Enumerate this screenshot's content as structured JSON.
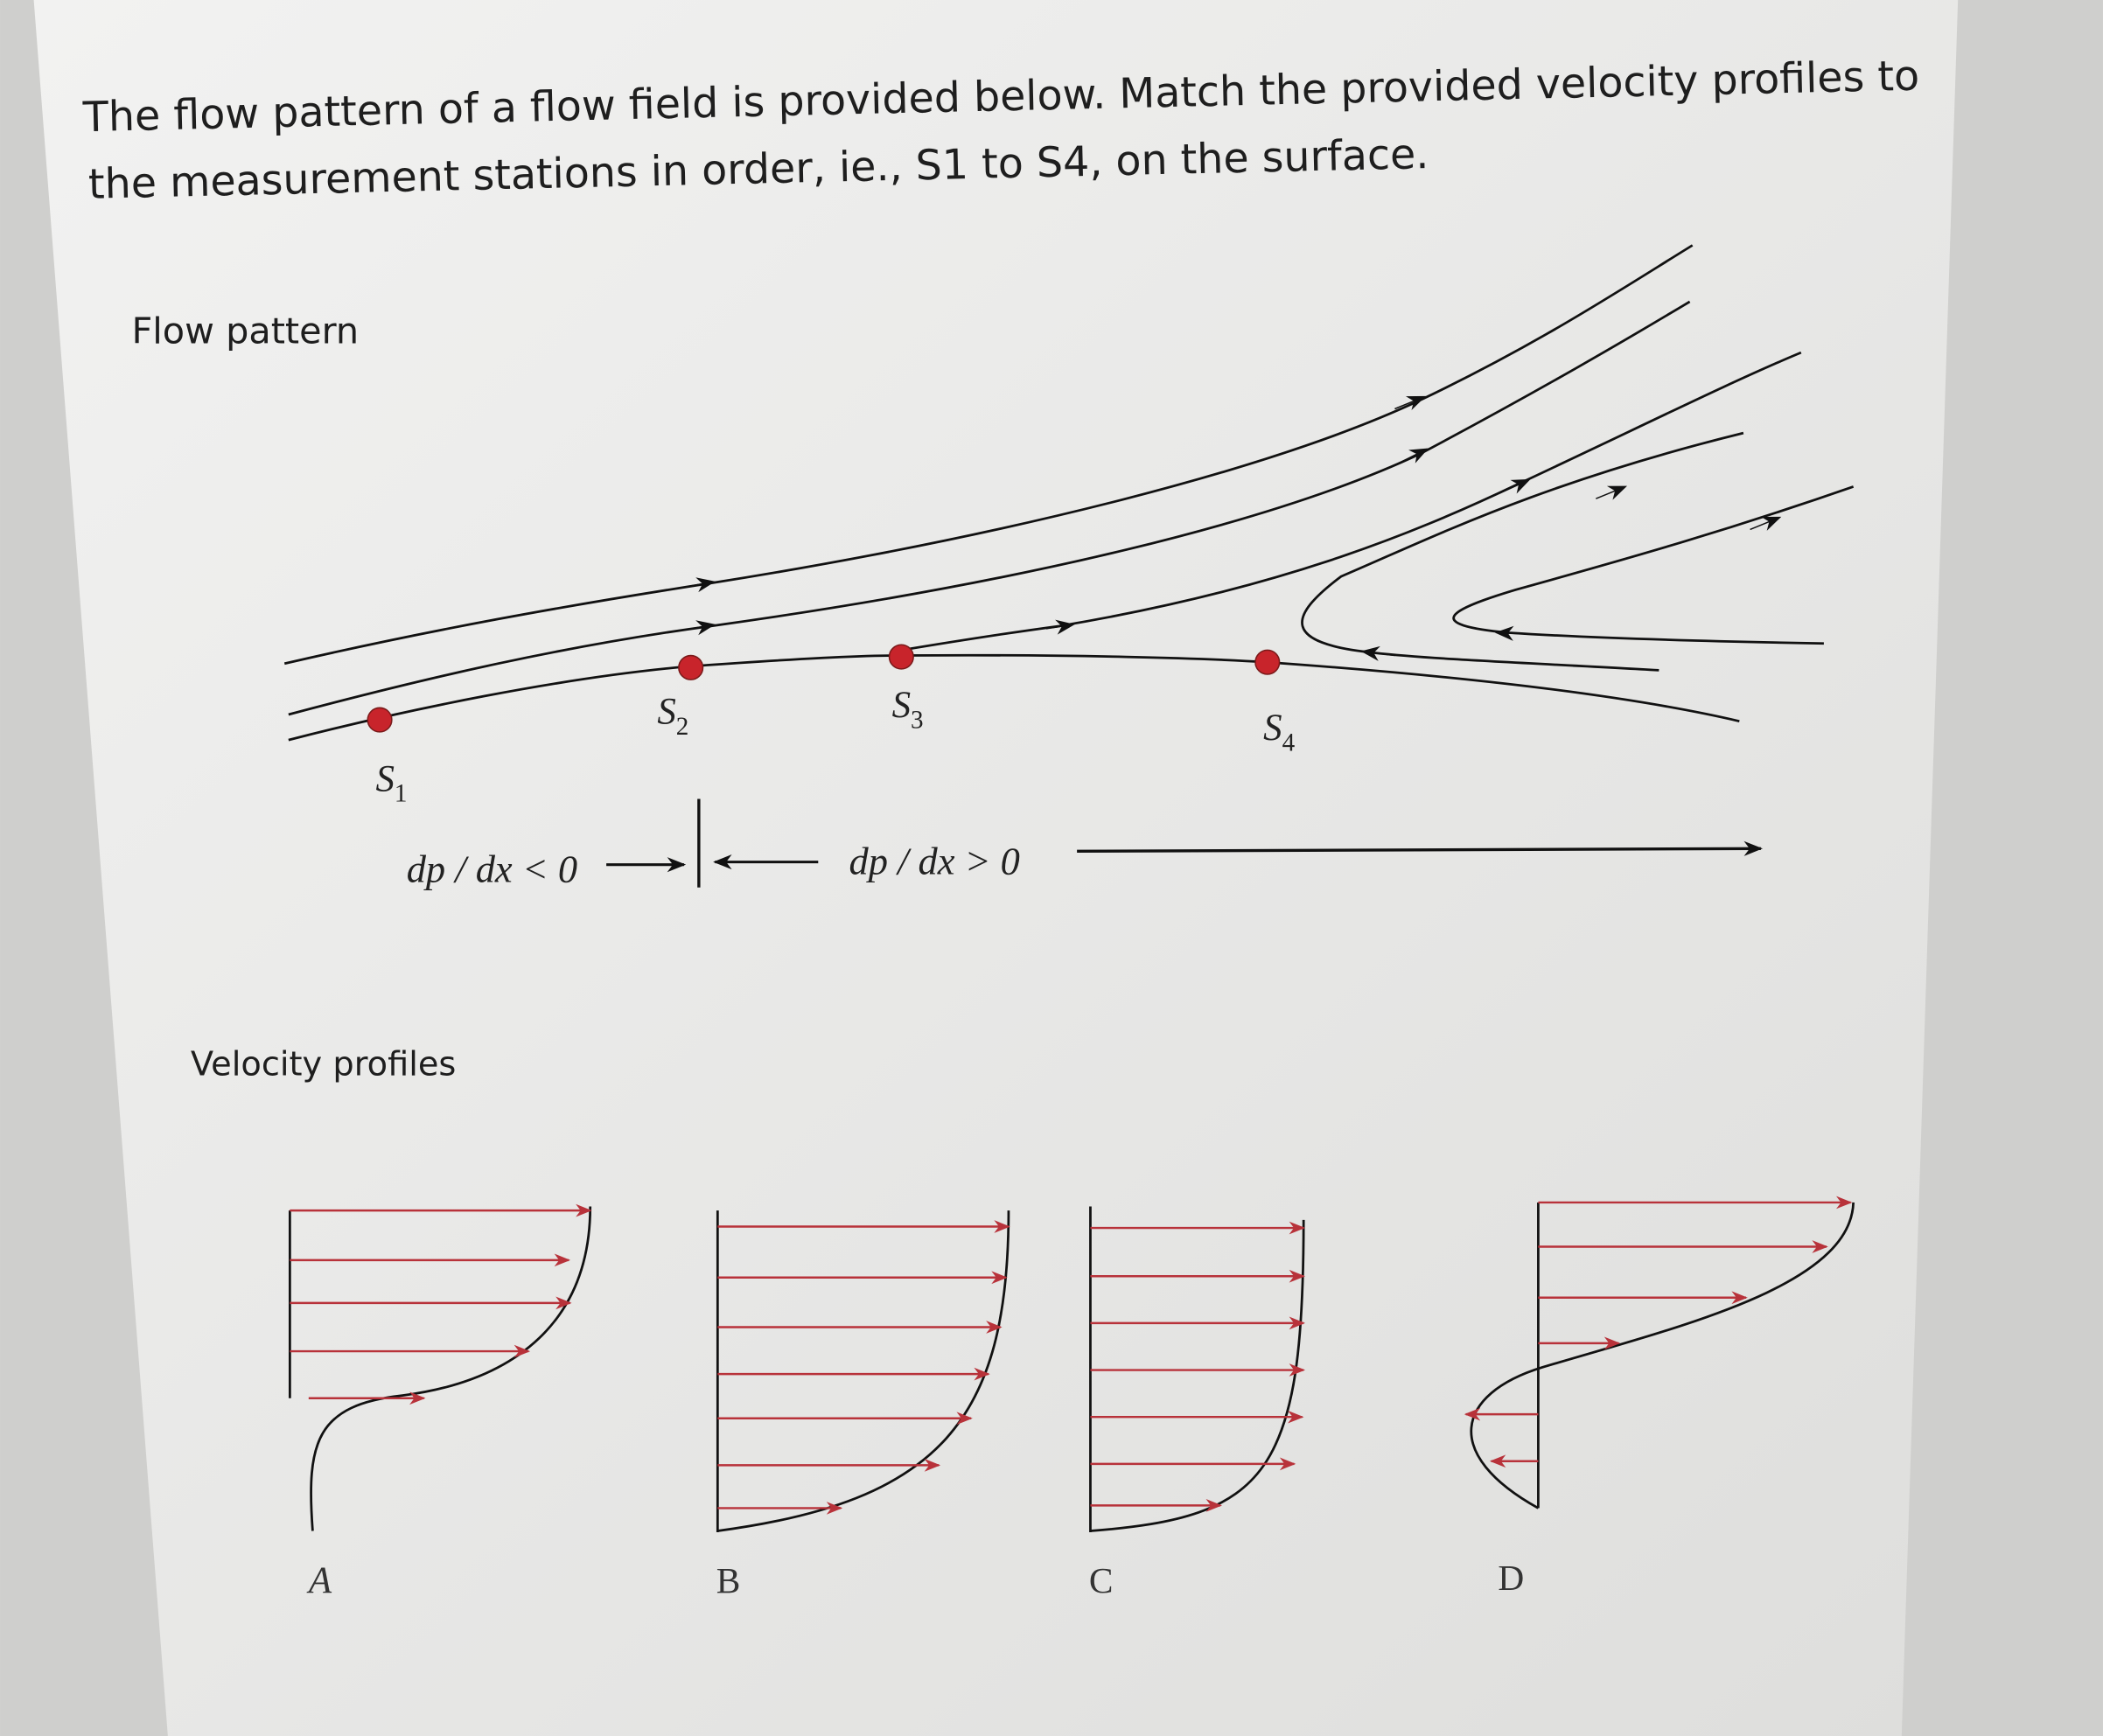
{
  "question_lines": [
    "The flow pattern of a flow field is provided below. Match the provided velocity profiles to",
    "the measurement stations in order, ie., S1 to S4, on the surface."
  ],
  "flow_pattern": {
    "title": "Flow pattern",
    "stations": [
      {
        "symbol": "S",
        "index": "1"
      },
      {
        "symbol": "S",
        "index": "2"
      },
      {
        "symbol": "S",
        "index": "3"
      },
      {
        "symbol": "S",
        "index": "4"
      }
    ],
    "favorable_label": "dp / dx < 0",
    "adverse_label": "dp / dx > 0"
  },
  "velocity_profiles": {
    "title": "Velocity profiles",
    "labels": [
      "A",
      "B",
      "C",
      "D"
    ]
  }
}
